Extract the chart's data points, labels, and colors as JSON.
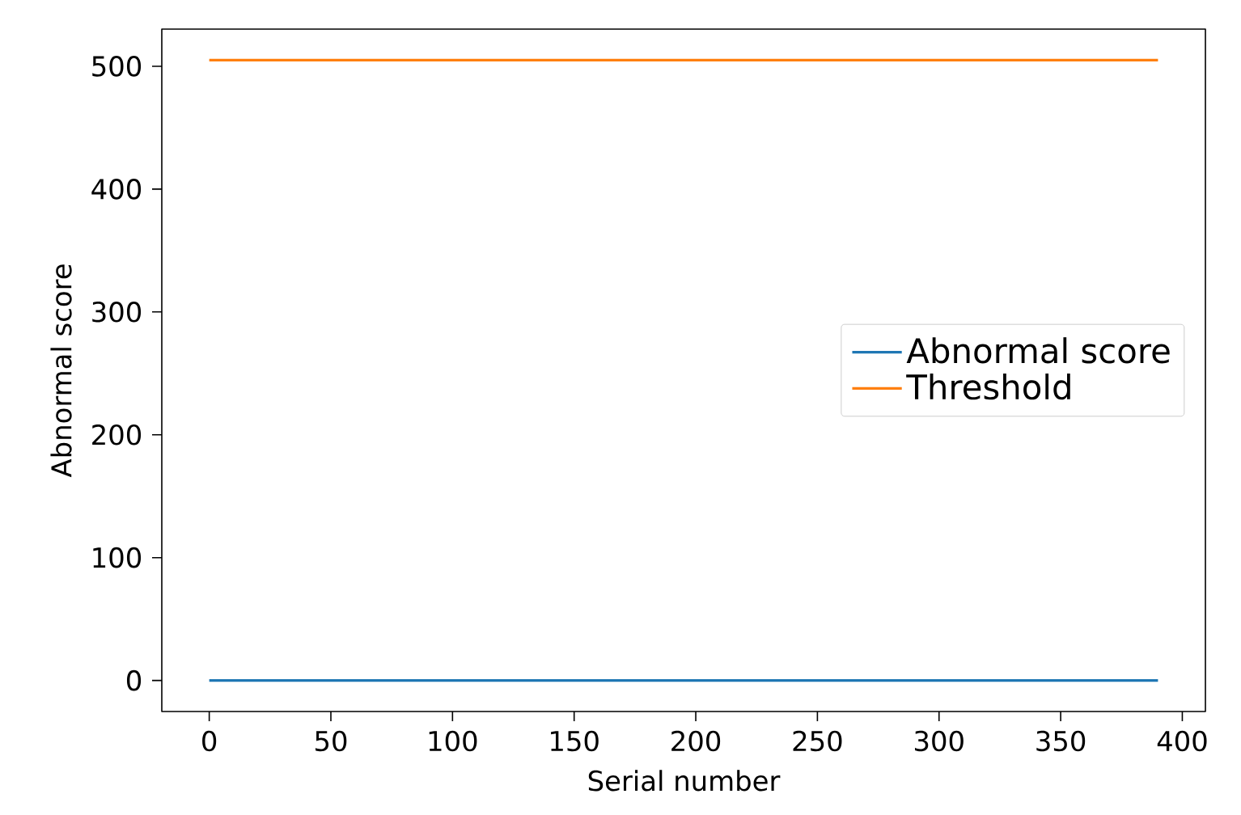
{
  "chart_data": {
    "type": "line",
    "xlabel": "Serial number",
    "ylabel": "Abnormal score",
    "series": [
      {
        "name": "Abnormal score",
        "color": "#1f77b4",
        "values": [
          0,
          0
        ]
      },
      {
        "name": "Threshold",
        "color": "#ff7f0e",
        "values": [
          505,
          505
        ]
      }
    ],
    "x": [
      0,
      390
    ],
    "xlim": [
      -19.5,
      409.5
    ],
    "ylim": [
      -25.25,
      530.25
    ],
    "xticks": [
      0,
      50,
      100,
      150,
      200,
      250,
      300,
      350,
      400
    ],
    "yticks": [
      0,
      100,
      200,
      300,
      400,
      500
    ],
    "grid": false,
    "legend": "right",
    "marker": "none",
    "line_style": "solid"
  }
}
